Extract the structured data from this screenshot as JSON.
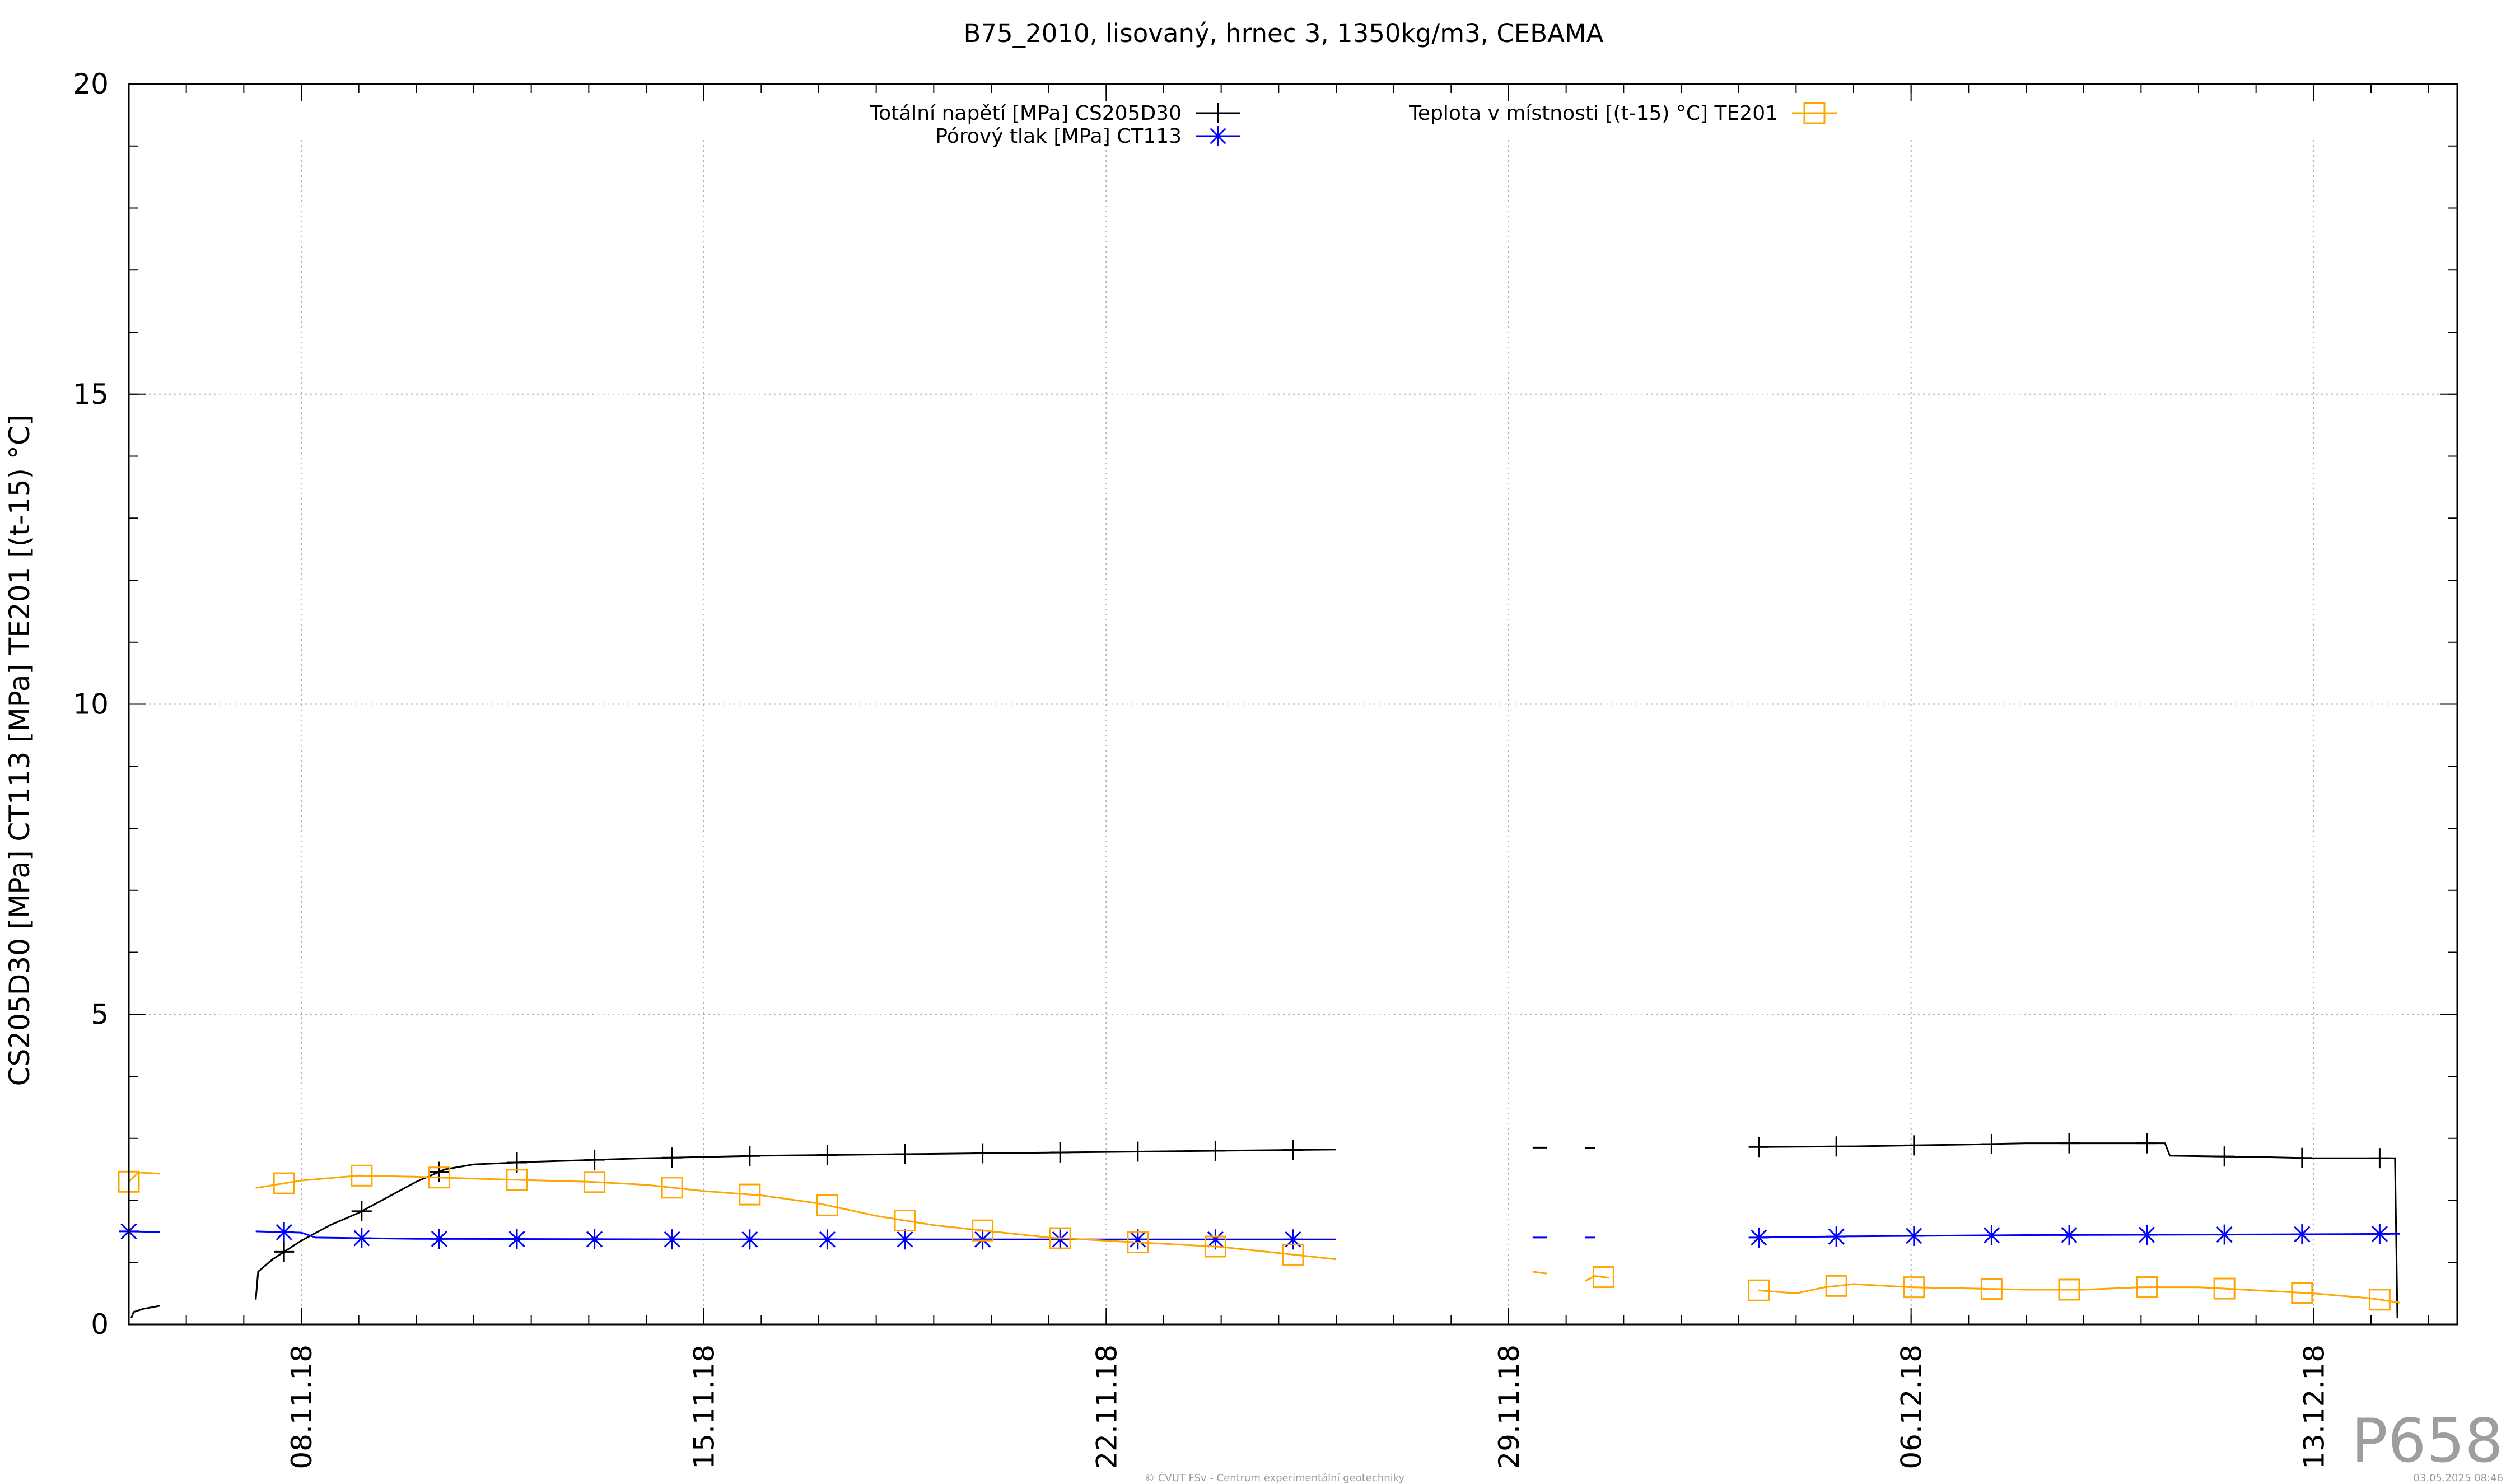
{
  "chart_data": {
    "type": "line",
    "title": "B75_2010, lisovaný, hrnec 3, 1350kg/m3, CEBAMA",
    "ylabel": "CS205D30 [MPa] CT113 [MPa] TE201 [(t-15) °C]",
    "xlabel": "",
    "ylim": [
      0,
      20
    ],
    "y_ticks": [
      0,
      5,
      10,
      15,
      20
    ],
    "x_range_days": [
      "2018-11-05",
      "2018-12-15"
    ],
    "x_ticks": [
      {
        "label": "08.11.18",
        "date": "2018-11-08"
      },
      {
        "label": "15.11.18",
        "date": "2018-11-15"
      },
      {
        "label": "22.11.18",
        "date": "2018-11-22"
      },
      {
        "label": "29.11.18",
        "date": "2018-11-29"
      },
      {
        "label": "06.12.18",
        "date": "2018-12-06"
      },
      {
        "label": "13.12.18",
        "date": "2018-12-13"
      }
    ],
    "grid": true,
    "legend_placement": "top",
    "series": [
      {
        "name": "Totální napětí [MPa] CS205D30",
        "color": "#000000",
        "marker": "plus",
        "segments": [
          [
            [
              "2018-11-05 01:00",
              0.1
            ],
            [
              "2018-11-05 02:00",
              0.2
            ],
            [
              "2018-11-05 06:00",
              0.25
            ],
            [
              "2018-11-05 13:00",
              0.3
            ]
          ],
          [
            [
              "2018-11-07 05:00",
              0.4
            ],
            [
              "2018-11-07 06:00",
              0.85
            ],
            [
              "2018-11-07 12:00",
              1.05
            ],
            [
              "2018-11-08 00:00",
              1.35
            ],
            [
              "2018-11-08 12:00",
              1.6
            ],
            [
              "2018-11-09 00:00",
              1.8
            ],
            [
              "2018-11-09 12:00",
              2.05
            ],
            [
              "2018-11-10 00:00",
              2.3
            ],
            [
              "2018-11-10 12:00",
              2.5
            ],
            [
              "2018-11-11 00:00",
              2.58
            ],
            [
              "2018-11-12 00:00",
              2.62
            ],
            [
              "2018-11-14 00:00",
              2.68
            ],
            [
              "2018-11-16 00:00",
              2.72
            ],
            [
              "2018-11-18 00:00",
              2.74
            ],
            [
              "2018-11-20 00:00",
              2.76
            ],
            [
              "2018-11-22 00:00",
              2.78
            ],
            [
              "2018-11-24 00:00",
              2.8
            ],
            [
              "2018-11-26 00:00",
              2.82
            ]
          ],
          [
            [
              "2018-11-29 10:00",
              2.85
            ],
            [
              "2018-11-29 16:00",
              2.85
            ]
          ],
          [
            [
              "2018-11-30 08:00",
              2.85
            ],
            [
              "2018-11-30 12:00",
              2.84
            ]
          ],
          [
            [
              "2018-12-03 08:00",
              2.86
            ],
            [
              "2018-12-05 00:00",
              2.87
            ],
            [
              "2018-12-07 00:00",
              2.9
            ],
            [
              "2018-12-08 00:00",
              2.92
            ],
            [
              "2018-12-09 00:00",
              2.92
            ],
            [
              "2018-12-10 10:00",
              2.92
            ],
            [
              "2018-12-10 12:00",
              2.72
            ],
            [
              "2018-12-12 00:00",
              2.7
            ],
            [
              "2018-12-13 00:00",
              2.68
            ],
            [
              "2018-12-14 10:00",
              2.68
            ],
            [
              "2018-12-14 11:00",
              0.1
            ]
          ]
        ]
      },
      {
        "name": "Pórový tlak [MPa] CT113",
        "color": "#0000ff",
        "marker": "star",
        "segments": [
          [
            [
              "2018-11-05 00:00",
              1.5
            ],
            [
              "2018-11-05 13:00",
              1.49
            ]
          ],
          [
            [
              "2018-11-07 05:00",
              1.5
            ],
            [
              "2018-11-08 00:00",
              1.48
            ],
            [
              "2018-11-08 06:00",
              1.4
            ],
            [
              "2018-11-10 00:00",
              1.38
            ],
            [
              "2018-11-15 00:00",
              1.37
            ],
            [
              "2018-11-20 00:00",
              1.37
            ],
            [
              "2018-11-26 00:00",
              1.37
            ]
          ],
          [
            [
              "2018-11-29 10:00",
              1.4
            ],
            [
              "2018-11-29 16:00",
              1.4
            ]
          ],
          [
            [
              "2018-11-30 08:00",
              1.4
            ],
            [
              "2018-11-30 12:00",
              1.4
            ]
          ],
          [
            [
              "2018-12-03 08:00",
              1.4
            ],
            [
              "2018-12-05 00:00",
              1.42
            ],
            [
              "2018-12-08 00:00",
              1.44
            ],
            [
              "2018-12-12 00:00",
              1.45
            ],
            [
              "2018-12-14 12:00",
              1.46
            ]
          ]
        ]
      },
      {
        "name": "Teplota v místnosti [(t-15) °C] TE201",
        "color": "#ffa500",
        "marker": "square",
        "segments": [
          [
            [
              "2018-11-05 00:00",
              2.3
            ],
            [
              "2018-11-05 04:00",
              2.45
            ],
            [
              "2018-11-05 13:00",
              2.43
            ]
          ],
          [
            [
              "2018-11-07 05:00",
              2.2
            ],
            [
              "2018-11-08 00:00",
              2.32
            ],
            [
              "2018-11-09 00:00",
              2.4
            ],
            [
              "2018-11-10 00:00",
              2.38
            ],
            [
              "2018-11-11 00:00",
              2.35
            ],
            [
              "2018-11-13 00:00",
              2.3
            ],
            [
              "2018-11-14 00:00",
              2.25
            ],
            [
              "2018-11-15 00:00",
              2.15
            ],
            [
              "2018-11-16 00:00",
              2.08
            ],
            [
              "2018-11-17 00:00",
              1.95
            ],
            [
              "2018-11-18 00:00",
              1.75
            ],
            [
              "2018-11-19 00:00",
              1.6
            ],
            [
              "2018-11-20 00:00",
              1.5
            ],
            [
              "2018-11-21 00:00",
              1.4
            ],
            [
              "2018-11-22 00:00",
              1.35
            ],
            [
              "2018-11-23 00:00",
              1.3
            ],
            [
              "2018-11-24 00:00",
              1.25
            ],
            [
              "2018-11-25 00:00",
              1.15
            ],
            [
              "2018-11-26 00:00",
              1.05
            ]
          ],
          [
            [
              "2018-11-29 10:00",
              0.85
            ],
            [
              "2018-11-29 16:00",
              0.82
            ]
          ],
          [
            [
              "2018-11-30 08:00",
              0.7
            ],
            [
              "2018-11-30 12:00",
              0.78
            ],
            [
              "2018-11-30 18:00",
              0.75
            ]
          ],
          [
            [
              "2018-12-03 08:00",
              0.55
            ],
            [
              "2018-12-04 00:00",
              0.5
            ],
            [
              "2018-12-04 12:00",
              0.6
            ],
            [
              "2018-12-05 00:00",
              0.65
            ],
            [
              "2018-12-06 00:00",
              0.6
            ],
            [
              "2018-12-07 00:00",
              0.58
            ],
            [
              "2018-12-08 00:00",
              0.56
            ],
            [
              "2018-12-09 00:00",
              0.56
            ],
            [
              "2018-12-10 00:00",
              0.6
            ],
            [
              "2018-12-11 00:00",
              0.6
            ],
            [
              "2018-12-12 00:00",
              0.55
            ],
            [
              "2018-12-13 00:00",
              0.5
            ],
            [
              "2018-12-14 00:00",
              0.42
            ],
            [
              "2018-12-14 12:00",
              0.35
            ]
          ]
        ]
      }
    ]
  },
  "watermark": "P658",
  "footer_center": "© ČVUT FSv - Centrum experimentální geotechniky",
  "footer_right": "03.05.2025 08:46"
}
